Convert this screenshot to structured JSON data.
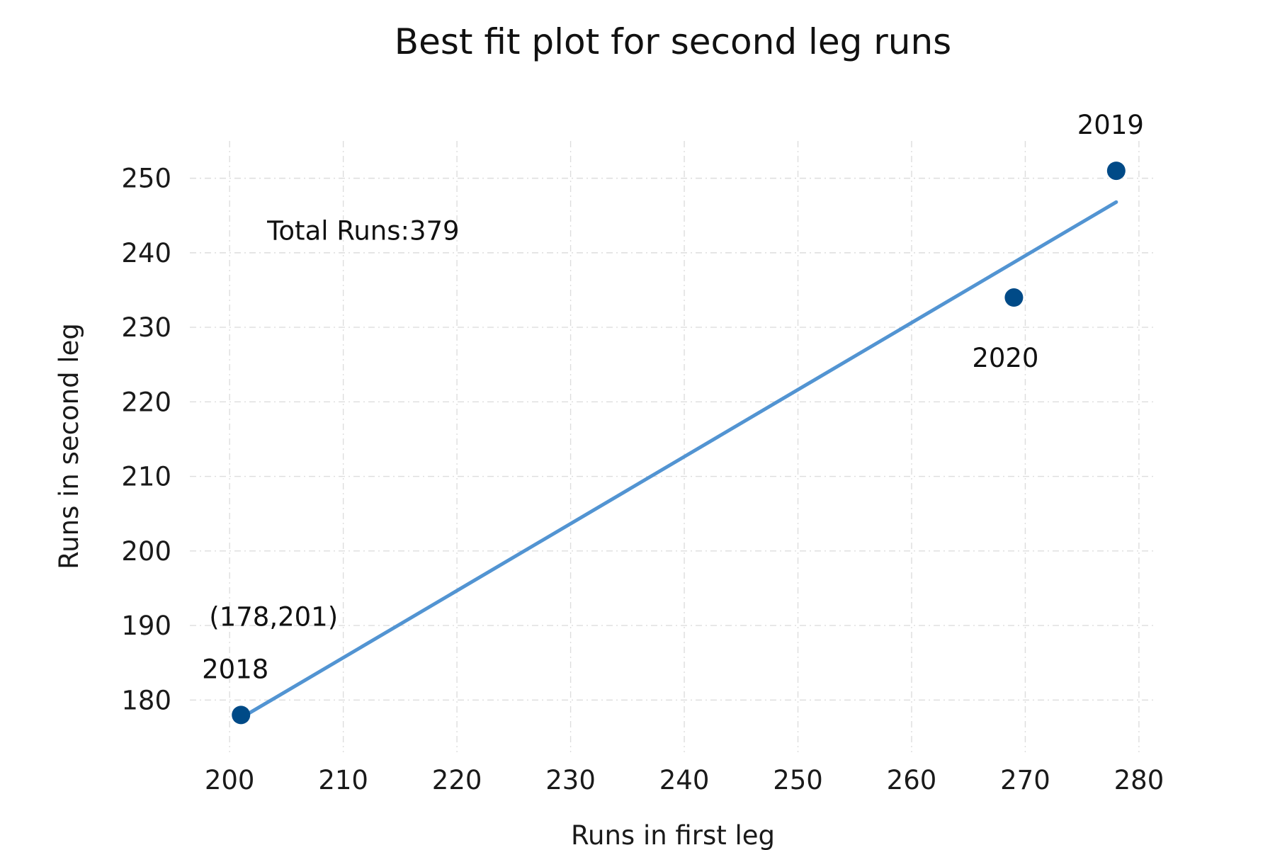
{
  "chart_data": {
    "type": "scatter",
    "title": "Best fit plot for second leg runs",
    "xlabel": "Runs in first leg",
    "ylabel": "Runs in second leg",
    "xlim": [
      196.5,
      281.5
    ],
    "ylim": [
      173,
      255
    ],
    "x_ticks": [
      200,
      210,
      220,
      230,
      240,
      250,
      260,
      270,
      280
    ],
    "y_ticks": [
      180,
      190,
      200,
      210,
      220,
      230,
      240,
      250
    ],
    "grid": true,
    "series": [
      {
        "type": "scatter",
        "color": "#004a87",
        "points": [
          {
            "x": 201,
            "y": 178,
            "label": "2018"
          },
          {
            "x": 278,
            "y": 251,
            "label": "2019"
          },
          {
            "x": 269,
            "y": 234,
            "label": "2020"
          }
        ]
      },
      {
        "type": "line",
        "color": "#5294d2",
        "points": [
          {
            "x": 201,
            "y": 177.6
          },
          {
            "x": 278,
            "y": 246.8
          }
        ]
      }
    ],
    "annotations": [
      {
        "text": "Total Runs:379",
        "x": 203.3,
        "y": 243
      },
      {
        "text": "(178,201)",
        "x": 198.2,
        "y": 191.2
      }
    ]
  }
}
